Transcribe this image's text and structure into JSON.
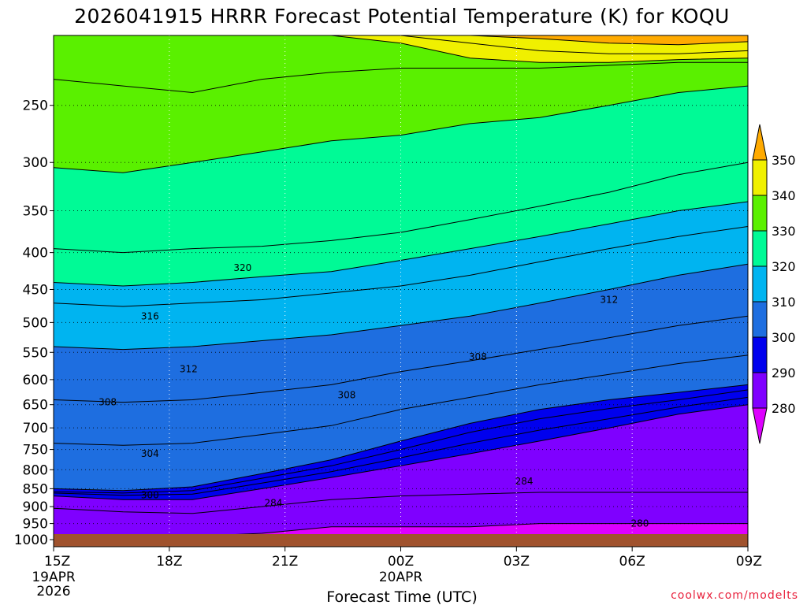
{
  "chart_data": {
    "type": "contour",
    "title": "2026041915 HRRR Forecast Potential Temperature (K) for KOQU",
    "xlabel": "Forecast Time (UTC)",
    "ylabel": "",
    "credit": "coolwx.com/modelts",
    "x_hours": [
      0,
      3,
      6,
      9,
      12,
      15,
      18
    ],
    "x_ticks": [
      "15Z",
      "18Z",
      "21Z",
      "00Z",
      "03Z",
      "06Z",
      "09Z"
    ],
    "x_date_labels": [
      {
        "hour": 0,
        "lines": [
          "19APR",
          "2026"
        ]
      },
      {
        "hour": 9,
        "lines": [
          "20APR"
        ]
      }
    ],
    "y_ticks": [
      250,
      300,
      350,
      400,
      450,
      500,
      550,
      600,
      650,
      700,
      750,
      800,
      850,
      900,
      950,
      1000
    ],
    "yrange_hpa": [
      200,
      1000
    ],
    "contour_interval": 2,
    "colorbar": {
      "levels": [
        280,
        290,
        300,
        310,
        320,
        330,
        340,
        350
      ],
      "colors": [
        "#dd00ff",
        "#7f00ff",
        "#0000ee",
        "#1e6ee0",
        "#00b4f0",
        "#00fa96",
        "#5af000",
        "#f0f000",
        "#ffaa00"
      ],
      "tick_labels": [
        "280",
        "290",
        "300",
        "310",
        "320",
        "330",
        "340",
        "350"
      ]
    },
    "isentrope_heights_hpa": {
      "theta": [
        280,
        284,
        290,
        294,
        298,
        300,
        304,
        308,
        312,
        316,
        320,
        324,
        330,
        334,
        340,
        346,
        350
      ],
      "by_hour": [
        [
          1000,
          905,
          870,
          862,
          858,
          850,
          735,
          640,
          540,
          470,
          440,
          395,
          305,
          230,
          200,
          200,
          200
        ],
        [
          1000,
          915,
          880,
          868,
          862,
          855,
          740,
          645,
          545,
          475,
          445,
          400,
          310,
          235,
          200,
          200,
          200
        ],
        [
          990,
          920,
          880,
          865,
          855,
          845,
          735,
          640,
          540,
          470,
          440,
          395,
          300,
          240,
          200,
          200,
          200
        ],
        [
          980,
          900,
          850,
          835,
          822,
          810,
          715,
          625,
          530,
          465,
          432,
          392,
          290,
          230,
          200,
          200,
          200
        ],
        [
          960,
          880,
          820,
          805,
          790,
          775,
          695,
          610,
          520,
          455,
          425,
          385,
          280,
          225,
          200,
          200,
          200
        ],
        [
          960,
          870,
          790,
          770,
          750,
          730,
          660,
          585,
          505,
          445,
          410,
          375,
          275,
          222,
          205,
          200,
          200
        ],
        [
          960,
          865,
          760,
          735,
          710,
          690,
          635,
          565,
          490,
          430,
          395,
          360,
          265,
          222,
          215,
          205,
          200
        ],
        [
          950,
          860,
          730,
          705,
          680,
          660,
          610,
          545,
          470,
          412,
          380,
          345,
          260,
          222,
          218,
          210,
          202
        ],
        [
          950,
          860,
          700,
          680,
          658,
          640,
          590,
          525,
          450,
          395,
          365,
          330,
          250,
          220,
          218,
          212,
          205
        ],
        [
          950,
          860,
          670,
          655,
          640,
          625,
          570,
          505,
          430,
          380,
          350,
          312,
          240,
          218,
          216,
          212,
          206
        ],
        [
          950,
          860,
          650,
          635,
          620,
          610,
          555,
          490,
          415,
          368,
          340,
          300,
          235,
          218,
          215,
          210,
          204
        ]
      ]
    },
    "contour_labels": [
      {
        "text": "320",
        "hour": 4.9,
        "hpa": 420
      },
      {
        "text": "312",
        "hour": 14.4,
        "hpa": 465
      },
      {
        "text": "316",
        "hour": 2.5,
        "hpa": 490
      },
      {
        "text": "308",
        "hour": 11.0,
        "hpa": 558
      },
      {
        "text": "312",
        "hour": 3.5,
        "hpa": 580
      },
      {
        "text": "308",
        "hour": 7.6,
        "hpa": 630
      },
      {
        "text": "308",
        "hour": 1.4,
        "hpa": 645
      },
      {
        "text": "304",
        "hour": 2.5,
        "hpa": 760
      },
      {
        "text": "300",
        "hour": 2.5,
        "hpa": 868
      },
      {
        "text": "284",
        "hour": 5.7,
        "hpa": 890
      },
      {
        "text": "284",
        "hour": 12.2,
        "hpa": 830
      },
      {
        "text": "280",
        "hour": 15.2,
        "hpa": 950
      }
    ],
    "terrain_color": "#a0522d"
  }
}
